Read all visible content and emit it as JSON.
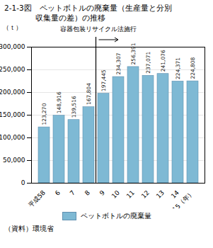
{
  "chart_data": {
    "type": "bar",
    "title": "2-1-3図　ペットボトルの廃棄量（生産量と分別",
    "subtitle": "　　　　収集量の差）の推移",
    "ylabel": "（ｔ）",
    "categories": [
      "平成58",
      "6",
      "7",
      "8",
      "9",
      "10",
      "11",
      "12",
      "13",
      "14",
      "15（年）"
    ],
    "series": [
      {
        "name": "ペットボトルの廃棄量",
        "color": "#7EB9D4",
        "values": [
          123270,
          148916,
          139516,
          167804,
          197445,
          234307,
          256391,
          237071,
          241076,
          224371,
          224808
        ],
        "value_labels": [
          "123,270",
          "148,916",
          "139,516",
          "167,804",
          "197,445",
          "234,307",
          "256,391",
          "237,071",
          "241,076",
          "224,371",
          "224,808"
        ]
      }
    ],
    "ylim": [
      0,
      300000
    ],
    "yticks": [
      0,
      {
        "value": 50000,
        "label": "50,000"
      },
      {
        "value": 100000,
        "label": "100,000"
      },
      {
        "value": 150000,
        "label": "150,000"
      },
      {
        "value": 200000,
        "label": "200,000"
      },
      {
        "value": 250000,
        "label": "250,000"
      },
      {
        "value": 300000,
        "label": "300,000"
      }
    ],
    "annotations": [
      {
        "text": "容器包装リサイクル法施行",
        "x": "9"
      }
    ],
    "source": "（資料）環境省",
    "grid": true,
    "legend": "bottom",
    "data_labels": true
  }
}
